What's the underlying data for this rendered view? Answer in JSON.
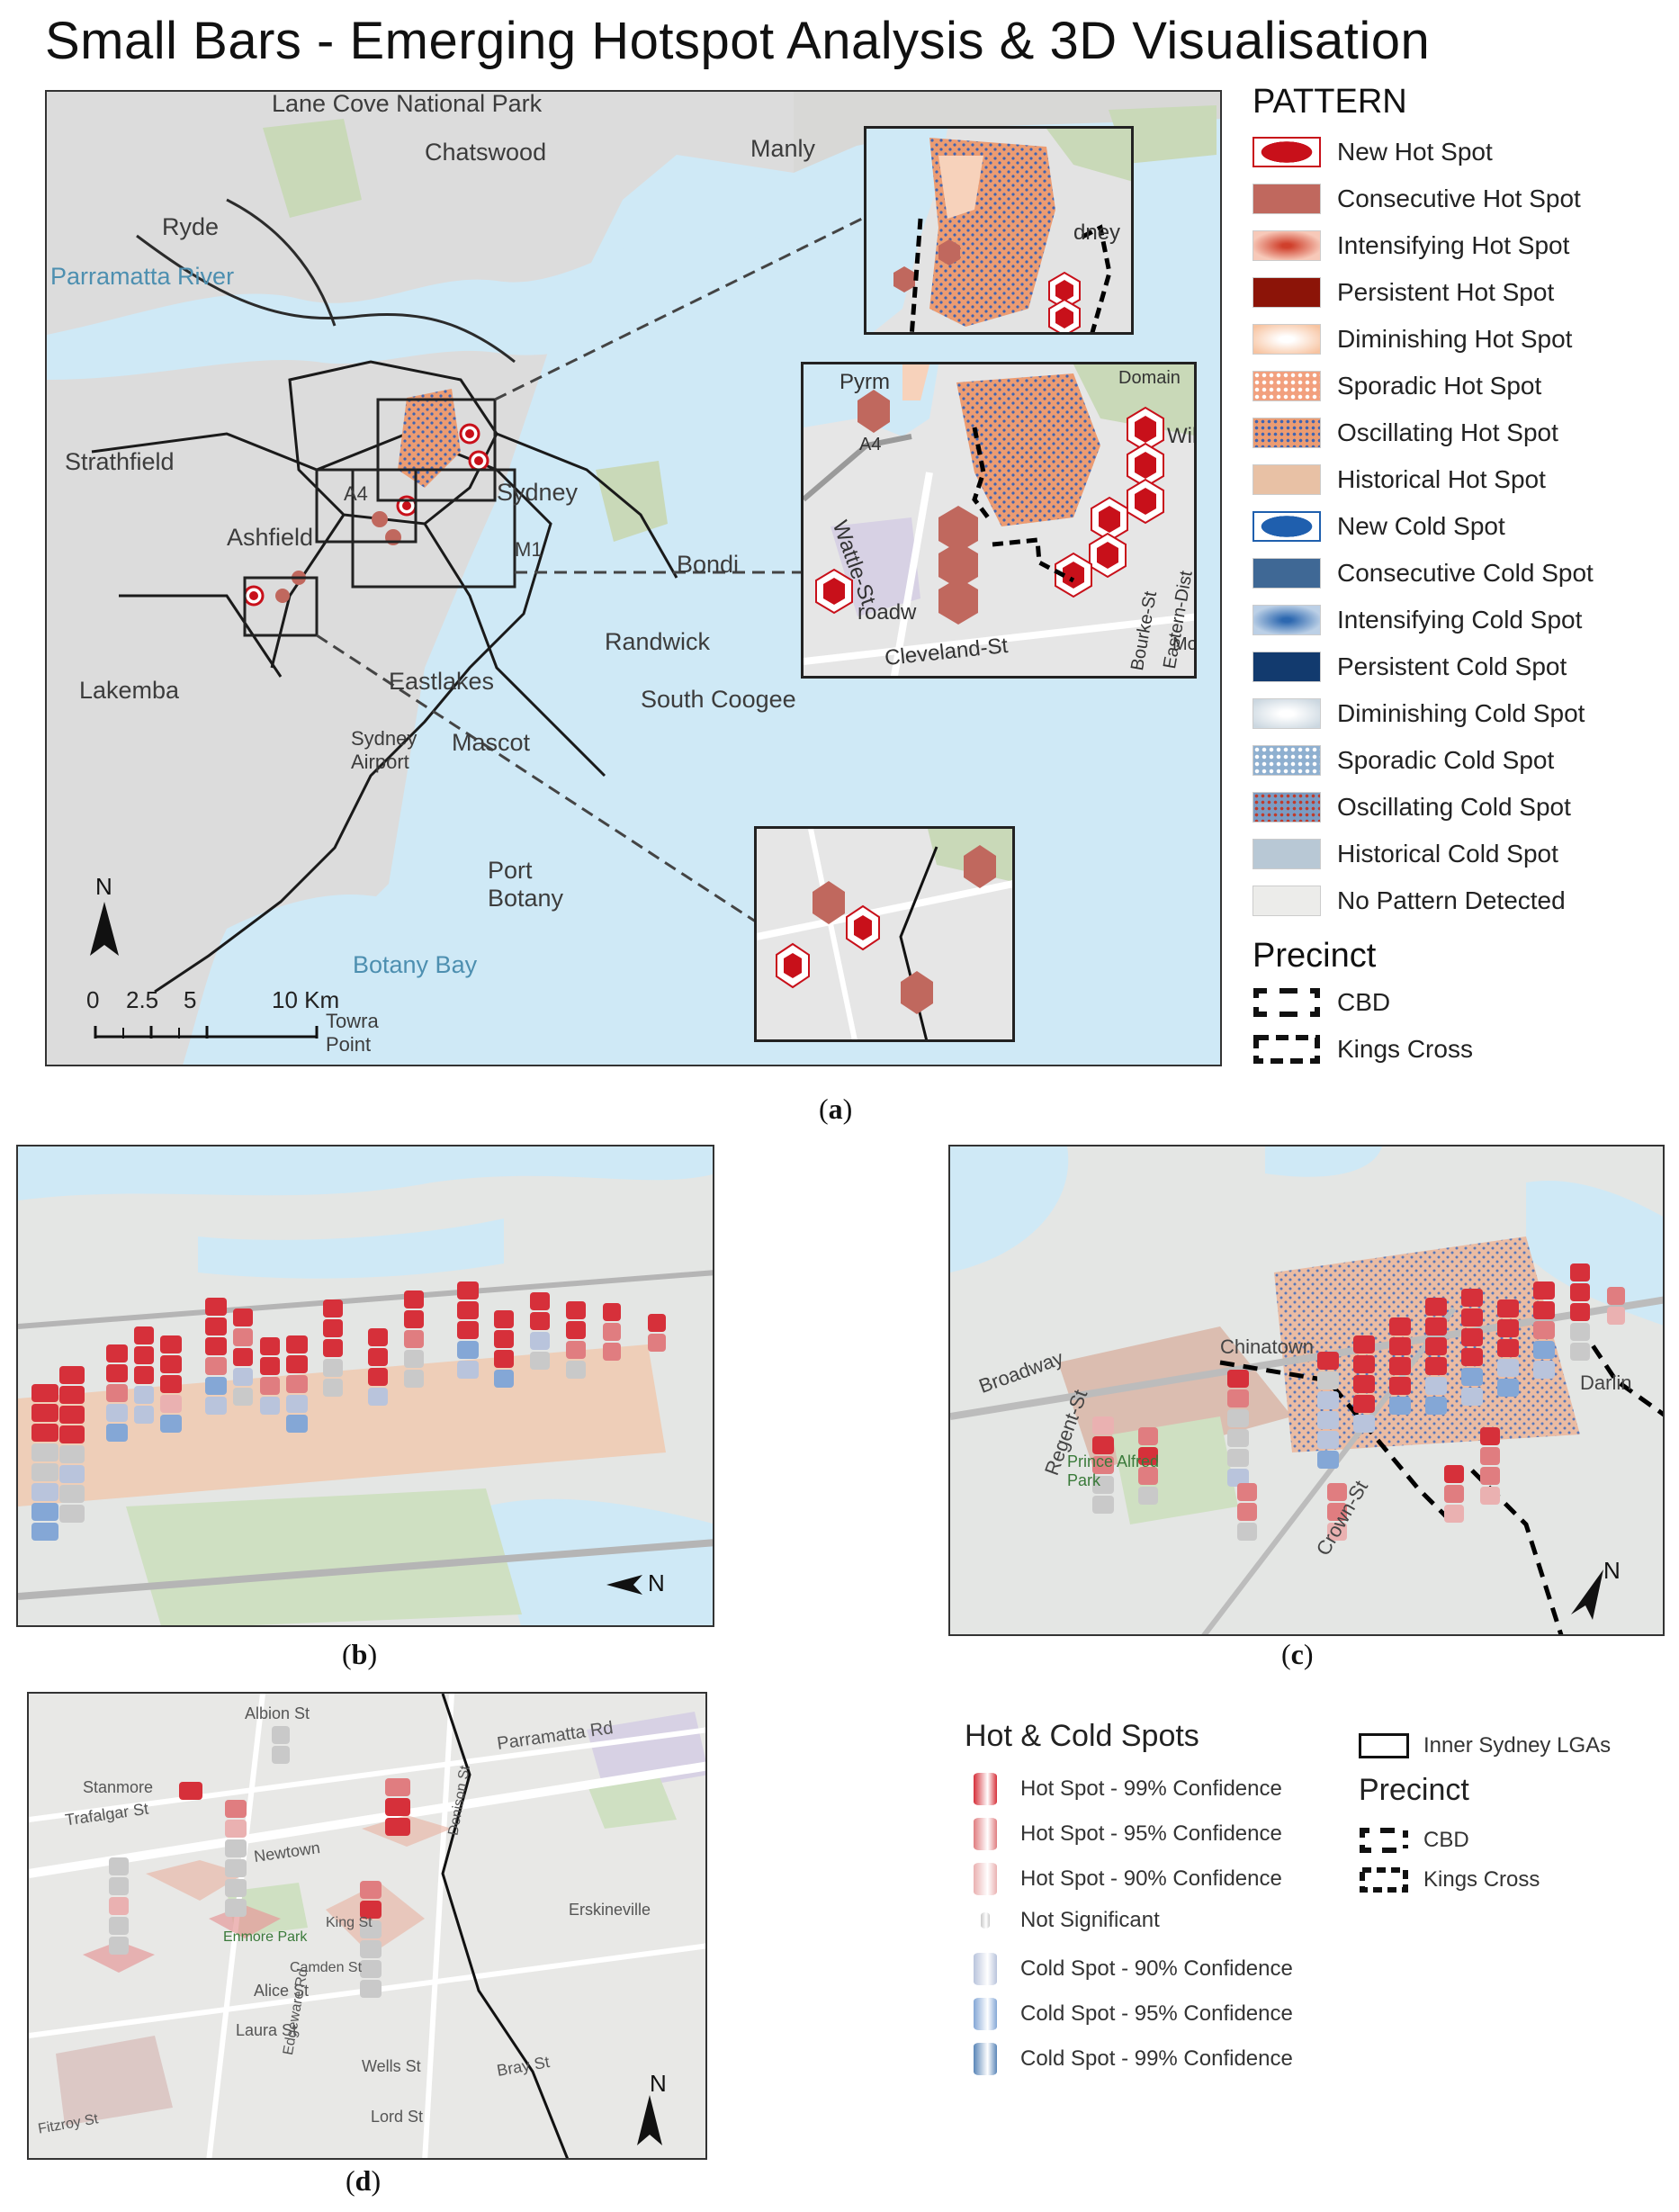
{
  "title": "Small Bars  - Emerging Hotspot Analysis & 3D Visualisation",
  "map_a": {
    "places": [
      {
        "id": "lane-cove",
        "text": "Lane Cove National Park",
        "water": false
      },
      {
        "id": "chatswood",
        "text": "Chatswood",
        "water": false
      },
      {
        "id": "manly",
        "text": "Manly",
        "water": false
      },
      {
        "id": "ryde",
        "text": "Ryde",
        "water": false
      },
      {
        "id": "parramatta-river",
        "text": "Parramatta River",
        "water": true
      },
      {
        "id": "strathfield",
        "text": "Strathfield",
        "water": false
      },
      {
        "id": "ashfield",
        "text": "Ashfield",
        "water": false
      },
      {
        "id": "sydney",
        "text": "Sydney",
        "water": false
      },
      {
        "id": "a4",
        "text": "A4",
        "water": false
      },
      {
        "id": "lakemba",
        "text": "Lakemba",
        "water": false
      },
      {
        "id": "randwick",
        "text": "Randwick",
        "water": false
      },
      {
        "id": "south-coogee",
        "text": "South Coogee",
        "water": false
      },
      {
        "id": "eastlakes",
        "text": "Eastlakes",
        "water": false
      },
      {
        "id": "mascot",
        "text": "Mascot",
        "water": false
      },
      {
        "id": "sydney-airport",
        "text": "Sydney Airport",
        "water": false
      },
      {
        "id": "port-botany",
        "text": "Port Botany",
        "water": false
      },
      {
        "id": "botany-bay",
        "text": "Botany Bay",
        "water": true
      },
      {
        "id": "towra-point",
        "text": "Towra Point",
        "water": false
      },
      {
        "id": "bondi",
        "text": "Bondi",
        "water": false
      },
      {
        "id": "m1",
        "text": "M1",
        "water": false
      }
    ],
    "inset1_labels": [
      "dney"
    ],
    "inset2_labels": [
      "Pyrm",
      "A4",
      "Wattle-St",
      "roadw",
      "Cleveland-St",
      "Domain",
      "Wil",
      "Bourke-St",
      "Eastern-Dist",
      "Moo"
    ],
    "scale": {
      "labels": [
        "0",
        "2.5",
        "5",
        "10 Km"
      ]
    },
    "north_label": "N"
  },
  "legend_a": {
    "title": "PATTERN",
    "items": [
      {
        "label": "New Hot Spot",
        "swatch": "new-hot",
        "color": "#c8101a"
      },
      {
        "label": "Consecutive Hot Spot",
        "swatch": "solid",
        "color": "#c0685e"
      },
      {
        "label": "Intensifying Hot Spot",
        "swatch": "radial",
        "color": "#d0402c"
      },
      {
        "label": "Persistent Hot Spot",
        "swatch": "solid",
        "color": "#8c1408"
      },
      {
        "label": "Diminishing Hot Spot",
        "swatch": "radial-light",
        "color": "#f7c3a0"
      },
      {
        "label": "Sporadic Hot Spot",
        "swatch": "dots-light",
        "color": "#f2a07e"
      },
      {
        "label": "Oscillating Hot Spot",
        "swatch": "dots-blue",
        "color": "#ec9c72"
      },
      {
        "label": "Historical Hot Spot",
        "swatch": "solid",
        "color": "#e8c1a5"
      },
      {
        "label": "New Cold Spot",
        "swatch": "new-cold",
        "color": "#1f5fae"
      },
      {
        "label": "Consecutive Cold Spot",
        "swatch": "solid",
        "color": "#3f6895"
      },
      {
        "label": "Intensifying Cold Spot",
        "swatch": "radial-blue",
        "color": "#2d68b0"
      },
      {
        "label": "Persistent Cold Spot",
        "swatch": "solid",
        "color": "#123a6e"
      },
      {
        "label": "Diminishing Cold Spot",
        "swatch": "radial-pale",
        "color": "#cbd7e0"
      },
      {
        "label": "Sporadic Cold Spot",
        "swatch": "dots-white",
        "color": "#8fb0d0"
      },
      {
        "label": "Oscillating Cold Spot",
        "swatch": "dots-red",
        "color": "#7b9cc3"
      },
      {
        "label": "Historical Cold Spot",
        "swatch": "solid",
        "color": "#b8c8d5"
      },
      {
        "label": "No Pattern Detected",
        "swatch": "solid",
        "color": "#ececea"
      }
    ],
    "precinct_title": "Precinct",
    "precinct_items": [
      "CBD",
      "Kings Cross"
    ]
  },
  "captions": {
    "a": "(a)",
    "b": "(b)",
    "c": "(c)",
    "d": "(d)"
  },
  "panel_b": {
    "north_label": "N"
  },
  "panel_c": {
    "north_label": "N",
    "labels": [
      "Chinatown",
      "Broadway",
      "Regent-St",
      "Prince Alfred Park",
      "Crown-St",
      "Darlin"
    ]
  },
  "panel_d": {
    "north_label": "N",
    "labels": [
      "Stanmore",
      "Trafalgar St",
      "Parramatta Rd",
      "Newtown",
      "Enmore Park",
      "King St",
      "Alice St",
      "Laura St",
      "Wells St",
      "Lord St",
      "Bray St",
      "Camden St",
      "Albion St",
      "Denison St",
      "Erskineville",
      "Edgeware Rd",
      "Fitzroy St"
    ]
  },
  "legend_b": {
    "title": "Hot & Cold Spots",
    "items": [
      {
        "label": "Hot Spot - 99% Confidence",
        "color": "#d6303a"
      },
      {
        "label": "Hot Spot - 95% Confidence",
        "color": "#e07d80"
      },
      {
        "label": "Hot Spot - 90% Confidence",
        "color": "#eab1b1"
      },
      {
        "label": "Not Significant",
        "color": "#c9c9c9"
      },
      {
        "label": "Cold Spot - 90% Confidence",
        "color": "#b9c4dc"
      },
      {
        "label": "Cold Spot - 95% Confidence",
        "color": "#84a7d6"
      },
      {
        "label": "Cold Spot - 99% Confidence",
        "color": "#5a86b8"
      }
    ],
    "lga_label": "Inner Sydney LGAs",
    "precinct_title": "Precinct",
    "precinct_items": [
      "CBD",
      "Kings Cross"
    ]
  }
}
